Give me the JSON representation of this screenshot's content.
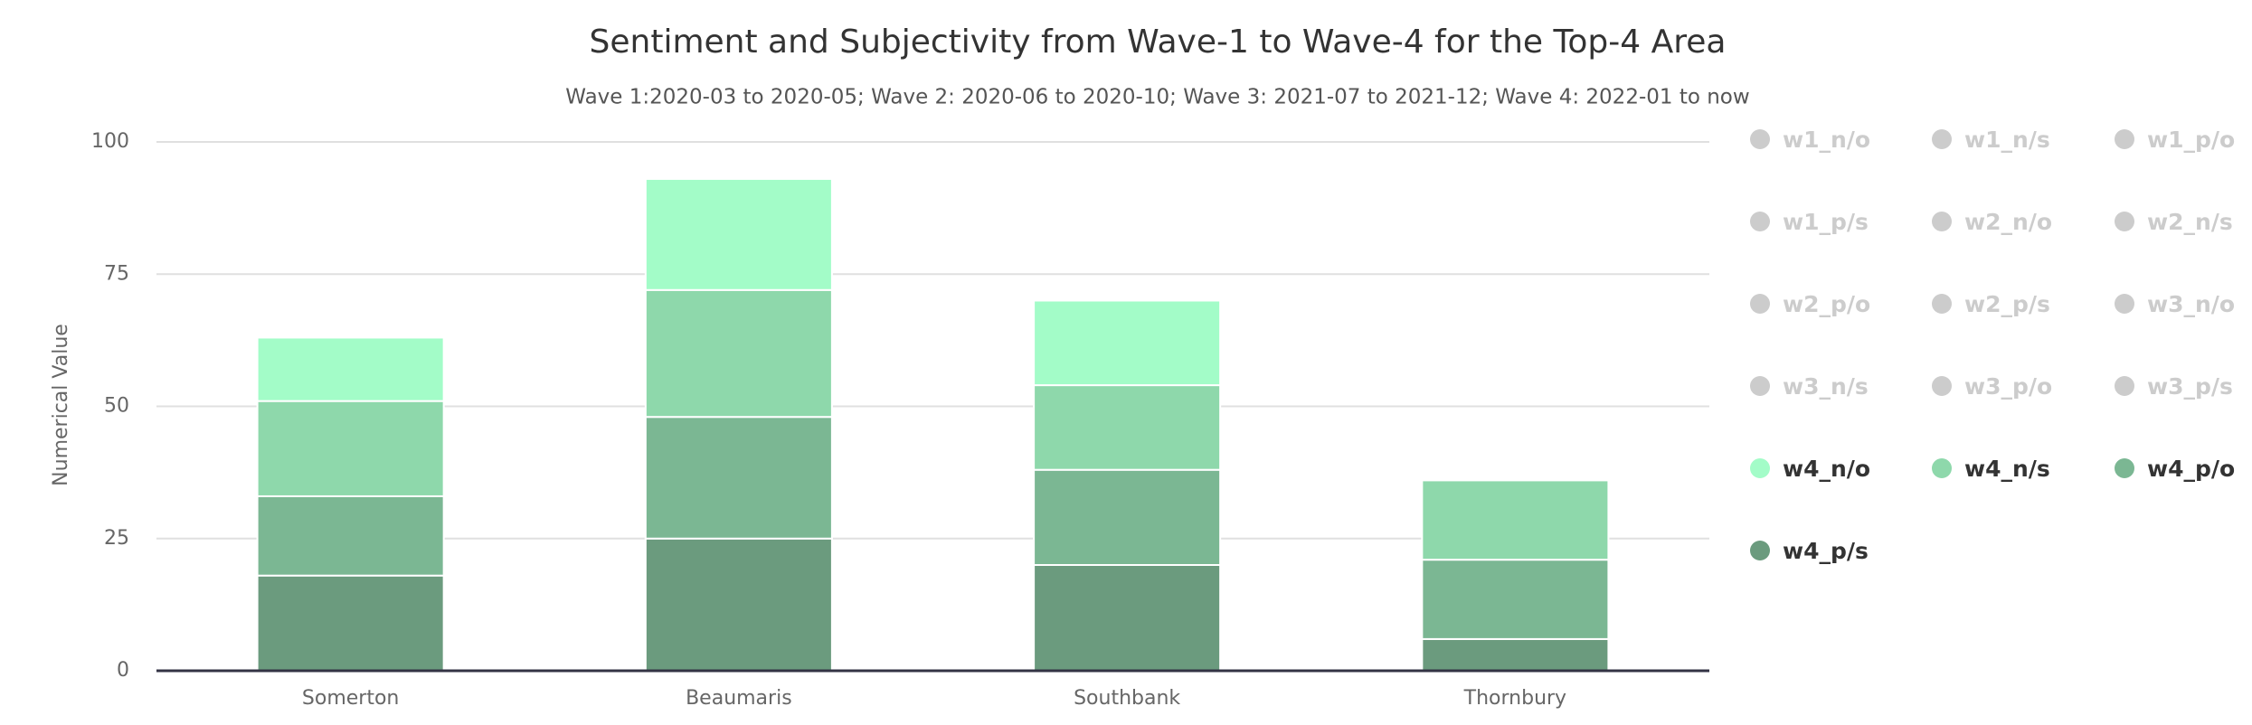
{
  "chart_data": {
    "type": "stacked_bar",
    "title": "Sentiment and Subjectivity from Wave-1 to Wave-4 for the Top-4 Area",
    "subtitle": "Wave 1:2020-03 to 2020-05; Wave 2: 2020-06 to 2020-10; Wave 3: 2021-07 to 2021-12; Wave 4: 2022-01 to now",
    "y_label": "Numerical Value",
    "categories": [
      "Somerton",
      "Beaumaris",
      "Southbank",
      "Thornbury"
    ],
    "ylim": [
      0,
      100
    ],
    "yticks": [
      0,
      25,
      50,
      75,
      100
    ],
    "grid": true,
    "hidden_color": "#cccccc",
    "series": [
      {
        "name": "w1_n/o",
        "visible": false,
        "values": [
          null,
          null,
          null,
          null
        ]
      },
      {
        "name": "w1_n/s",
        "visible": false,
        "values": [
          null,
          null,
          null,
          null
        ]
      },
      {
        "name": "w1_p/o",
        "visible": false,
        "values": [
          null,
          null,
          null,
          null
        ]
      },
      {
        "name": "w1_p/s",
        "visible": false,
        "values": [
          null,
          null,
          null,
          null
        ]
      },
      {
        "name": "w2_n/o",
        "visible": false,
        "values": [
          null,
          null,
          null,
          null
        ]
      },
      {
        "name": "w2_n/s",
        "visible": false,
        "values": [
          null,
          null,
          null,
          null
        ]
      },
      {
        "name": "w2_p/o",
        "visible": false,
        "values": [
          null,
          null,
          null,
          null
        ]
      },
      {
        "name": "w2_p/s",
        "visible": false,
        "values": [
          null,
          null,
          null,
          null
        ]
      },
      {
        "name": "w3_n/o",
        "visible": false,
        "values": [
          null,
          null,
          null,
          null
        ]
      },
      {
        "name": "w3_n/s",
        "visible": false,
        "values": [
          null,
          null,
          null,
          null
        ]
      },
      {
        "name": "w3_p/o",
        "visible": false,
        "values": [
          null,
          null,
          null,
          null
        ]
      },
      {
        "name": "w3_p/s",
        "visible": false,
        "values": [
          null,
          null,
          null,
          null
        ]
      },
      {
        "name": "w4_n/o",
        "visible": true,
        "color": "#a3fcc8",
        "values": [
          12,
          21,
          16,
          0
        ]
      },
      {
        "name": "w4_n/s",
        "visible": true,
        "color": "#8ed8ab",
        "values": [
          18,
          24,
          16,
          15
        ]
      },
      {
        "name": "w4_p/o",
        "visible": true,
        "color": "#7bb793",
        "values": [
          15,
          23,
          18,
          15
        ]
      },
      {
        "name": "w4_p/s",
        "visible": true,
        "color": "#6b9b7e",
        "values": [
          18,
          25,
          20,
          6
        ]
      }
    ]
  }
}
